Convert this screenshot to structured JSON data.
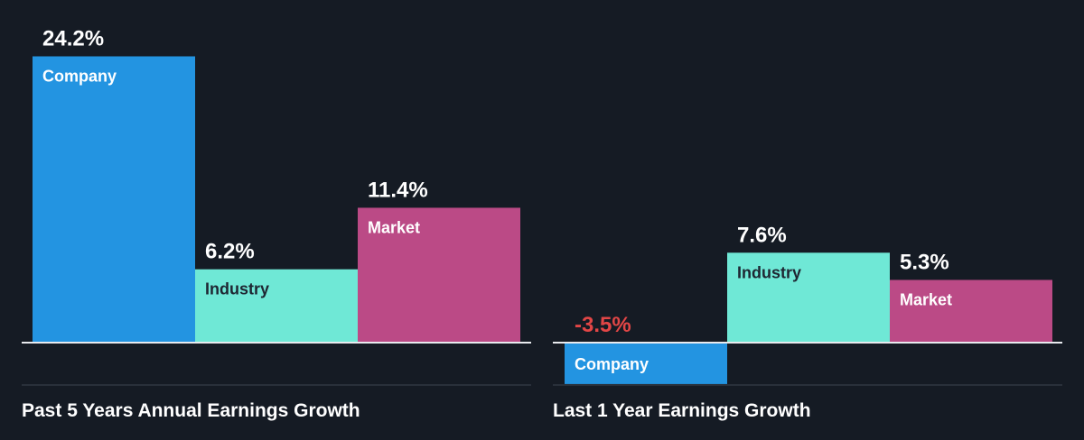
{
  "colors": {
    "background": "#151b24",
    "company": "#2394e1",
    "industry": "#6fe8d6",
    "market": "#bb4a86",
    "negative_value": "#e24646",
    "value_text": "#ffffff",
    "divider": "#3d4450"
  },
  "chart_data": [
    {
      "type": "bar",
      "title": "Past 5 Years Annual Earnings Growth",
      "categories": [
        "Company",
        "Industry",
        "Market"
      ],
      "values": [
        24.2,
        6.2,
        11.4
      ],
      "value_labels": [
        "24.2%",
        "6.2%",
        "11.4%"
      ],
      "unit": "%",
      "xlabel": "",
      "ylabel": "",
      "ylim": [
        -3.5,
        24.2
      ],
      "grid": false,
      "legend": "none"
    },
    {
      "type": "bar",
      "title": "Last 1 Year Earnings Growth",
      "categories": [
        "Company",
        "Industry",
        "Market"
      ],
      "values": [
        -3.5,
        7.6,
        5.3
      ],
      "value_labels": [
        "-3.5%",
        "7.6%",
        "5.3%"
      ],
      "unit": "%",
      "xlabel": "",
      "ylabel": "",
      "ylim": [
        -3.5,
        24.2
      ],
      "grid": false,
      "legend": "none"
    }
  ]
}
